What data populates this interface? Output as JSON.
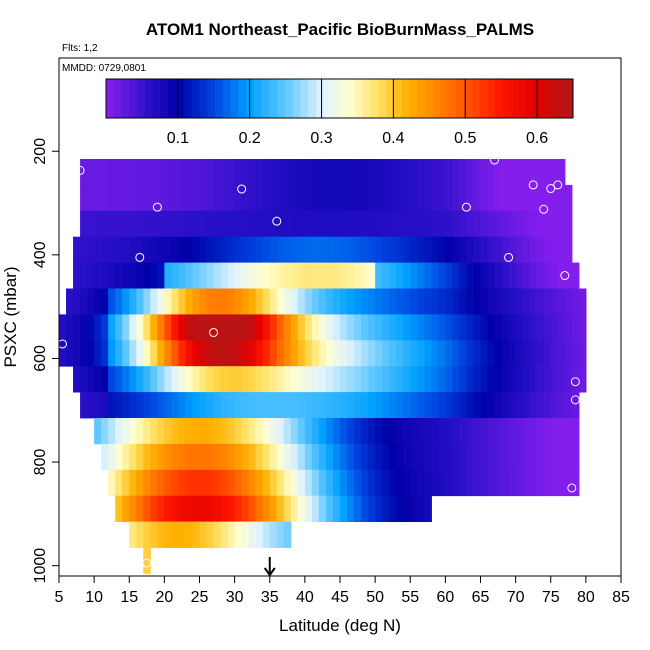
{
  "chart_data": {
    "type": "heatmap",
    "title": "ATOM1 Northeast_Pacific BioBurnMass_PALMS",
    "flights_note": "Flts: 1,2",
    "date_note": "MMDD: 0729,0801",
    "xlabel": "Latitude (deg N)",
    "ylabel": "PSXC (mbar)",
    "xlim": [
      5,
      85
    ],
    "ylim": [
      1020,
      20
    ],
    "x_ticks": [
      "5",
      "10",
      "15",
      "20",
      "25",
      "30",
      "35",
      "40",
      "45",
      "50",
      "55",
      "60",
      "65",
      "70",
      "75",
      "80",
      "85"
    ],
    "y_ticks": [
      "200",
      "400",
      "600",
      "800",
      "1000"
    ],
    "colorbar": {
      "min": 0.0,
      "max": 0.65,
      "ticks": [
        "0.1",
        "0.2",
        "0.3",
        "0.4",
        "0.5",
        "0.6"
      ],
      "stops": [
        {
          "v": 0.0,
          "c": "#8b1ff0"
        },
        {
          "v": 0.06,
          "c": "#2a10c8"
        },
        {
          "v": 0.1,
          "c": "#0000a8"
        },
        {
          "v": 0.15,
          "c": "#0044e0"
        },
        {
          "v": 0.2,
          "c": "#00a0ff"
        },
        {
          "v": 0.25,
          "c": "#60c8ff"
        },
        {
          "v": 0.3,
          "c": "#dff2ff"
        },
        {
          "v": 0.34,
          "c": "#ffffd0"
        },
        {
          "v": 0.38,
          "c": "#ffe060"
        },
        {
          "v": 0.42,
          "c": "#ffb000"
        },
        {
          "v": 0.48,
          "c": "#ff7000"
        },
        {
          "v": 0.55,
          "c": "#ff1500"
        },
        {
          "v": 0.6,
          "c": "#e00000"
        },
        {
          "v": 0.65,
          "c": "#b01818"
        }
      ]
    },
    "layers": [
      {
        "p": 240,
        "lat_min": 8,
        "lat_max": 77
      },
      {
        "p": 290,
        "lat_min": 8,
        "lat_max": 78
      },
      {
        "p": 340,
        "lat_min": 8,
        "lat_max": 78
      },
      {
        "p": 390,
        "lat_min": 7,
        "lat_max": 78
      },
      {
        "p": 440,
        "lat_min": 7,
        "lat_max": 79
      },
      {
        "p": 490,
        "lat_min": 6,
        "lat_max": 80
      },
      {
        "p": 540,
        "lat_min": 5,
        "lat_max": 80
      },
      {
        "p": 590,
        "lat_min": 5,
        "lat_max": 80
      },
      {
        "p": 640,
        "lat_min": 7,
        "lat_max": 80
      },
      {
        "p": 690,
        "lat_min": 8,
        "lat_max": 79
      },
      {
        "p": 740,
        "lat_min": 10,
        "lat_max": 79
      },
      {
        "p": 790,
        "lat_min": 11,
        "lat_max": 79
      },
      {
        "p": 840,
        "lat_min": 12,
        "lat_max": 79
      },
      {
        "p": 890,
        "lat_min": 13,
        "lat_max": 58
      },
      {
        "p": 940,
        "lat_min": 15,
        "lat_max": 38
      },
      {
        "p": 990,
        "lat_min": 17,
        "lat_max": 18
      }
    ],
    "plume": {
      "lat": 27,
      "p": 550,
      "peak": 0.6
    },
    "points": [
      {
        "lat": 8,
        "p": 237
      },
      {
        "lat": 19,
        "p": 308
      },
      {
        "lat": 31,
        "p": 273
      },
      {
        "lat": 36,
        "p": 335
      },
      {
        "lat": 63,
        "p": 308
      },
      {
        "lat": 67,
        "p": 217
      },
      {
        "lat": 72.5,
        "p": 265
      },
      {
        "lat": 75,
        "p": 272
      },
      {
        "lat": 76,
        "p": 265
      },
      {
        "lat": 74,
        "p": 312
      },
      {
        "lat": 16.5,
        "p": 405
      },
      {
        "lat": 69,
        "p": 405
      },
      {
        "lat": 77,
        "p": 440
      },
      {
        "lat": 27,
        "p": 550
      },
      {
        "lat": 5.5,
        "p": 572
      },
      {
        "lat": 78.5,
        "p": 645
      },
      {
        "lat": 78.5,
        "p": 680
      },
      {
        "lat": 78,
        "p": 850
      },
      {
        "lat": 17.5,
        "p": 995
      }
    ],
    "marker": {
      "lat": 35,
      "label": ""
    }
  }
}
